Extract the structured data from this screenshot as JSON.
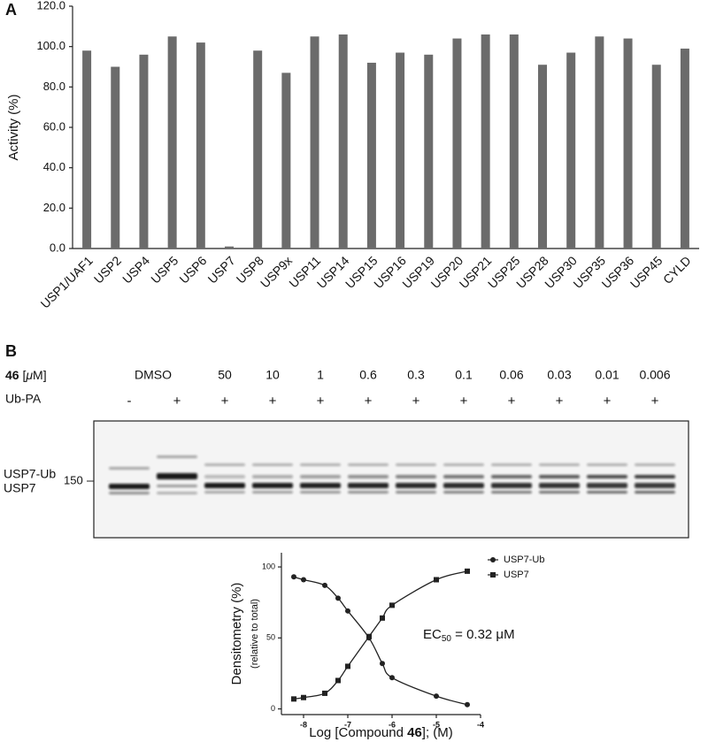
{
  "panel_labels": [
    "A",
    "B"
  ],
  "chart_data": [
    {
      "type": "bar",
      "ylabel": "Activity (%)",
      "categories": [
        "USP1/UAF1",
        "USP2",
        "USP4",
        "USP5",
        "USP6",
        "USP7",
        "USP8",
        "USP9x",
        "USP11",
        "USP14",
        "USP15",
        "USP16",
        "USP19",
        "USP20",
        "USP21",
        "USP25",
        "USP28",
        "USP30",
        "USP35",
        "USP36",
        "USP45",
        "CYLD"
      ],
      "values": [
        98,
        90,
        96,
        105,
        102,
        1,
        98,
        87,
        105,
        106,
        92,
        97,
        96,
        104,
        106,
        106,
        91,
        97,
        105,
        104,
        91,
        99
      ],
      "color": "#6b6b6b",
      "ylim": [
        0,
        120
      ],
      "yticks": [
        {
          "value": 0,
          "label": "0.0"
        },
        {
          "value": 20,
          "label": "20.0"
        },
        {
          "value": 40,
          "label": "40.0"
        },
        {
          "value": 60,
          "label": "60.0"
        },
        {
          "value": 80,
          "label": "80.0"
        },
        {
          "value": 100,
          "label": "100.0"
        },
        {
          "value": 120,
          "label": "120.0"
        }
      ],
      "grid": false
    },
    {
      "type": "line",
      "xlabel": [
        "Log [Compound ",
        "46",
        "]; (M)"
      ],
      "ylabel": "Densitometry (%)",
      "ylabel_sub": "(relative to total)",
      "x": [
        -8.22,
        -8,
        -7.52,
        -7.22,
        -7,
        -6.52,
        -6.22,
        -6,
        -5,
        -4.3
      ],
      "series": [
        {
          "name": "USP7-Ub",
          "color": "#222222",
          "marker": "circle",
          "values": [
            93,
            91,
            87,
            78,
            69,
            50,
            32,
            22,
            9,
            3
          ]
        },
        {
          "name": "USP7",
          "color": "#222222",
          "marker": "square",
          "values": [
            7,
            8,
            11,
            20,
            30,
            51,
            64,
            73,
            91,
            97
          ]
        }
      ],
      "xlim": [
        -8.5,
        -4
      ],
      "xticks": [
        -8,
        -7,
        -6,
        -5,
        -4
      ],
      "ylim": [
        -4,
        110
      ],
      "yticks": [
        0,
        50,
        100
      ],
      "legend": "upper right",
      "annotation": {
        "text": "EC",
        "sub": "50",
        "rest": " = 0.32 μM"
      }
    }
  ],
  "blot": {
    "compound_label": {
      "bold": "46",
      "open": " [",
      "unit": "μ",
      "close": "M]"
    },
    "concentrations": [
      "DMSO",
      "50",
      "10",
      "1",
      "0.6",
      "0.3",
      "0.1",
      "0.06",
      "0.03",
      "0.01",
      "0.006"
    ],
    "reagent_label": "Ub-PA",
    "reagent": [
      "-",
      "+",
      "+",
      "+",
      "+",
      "+",
      "+",
      "+",
      "+",
      "+",
      "+",
      "+"
    ],
    "bands": [
      "USP7-Ub",
      "USP7"
    ],
    "marker": "150"
  }
}
